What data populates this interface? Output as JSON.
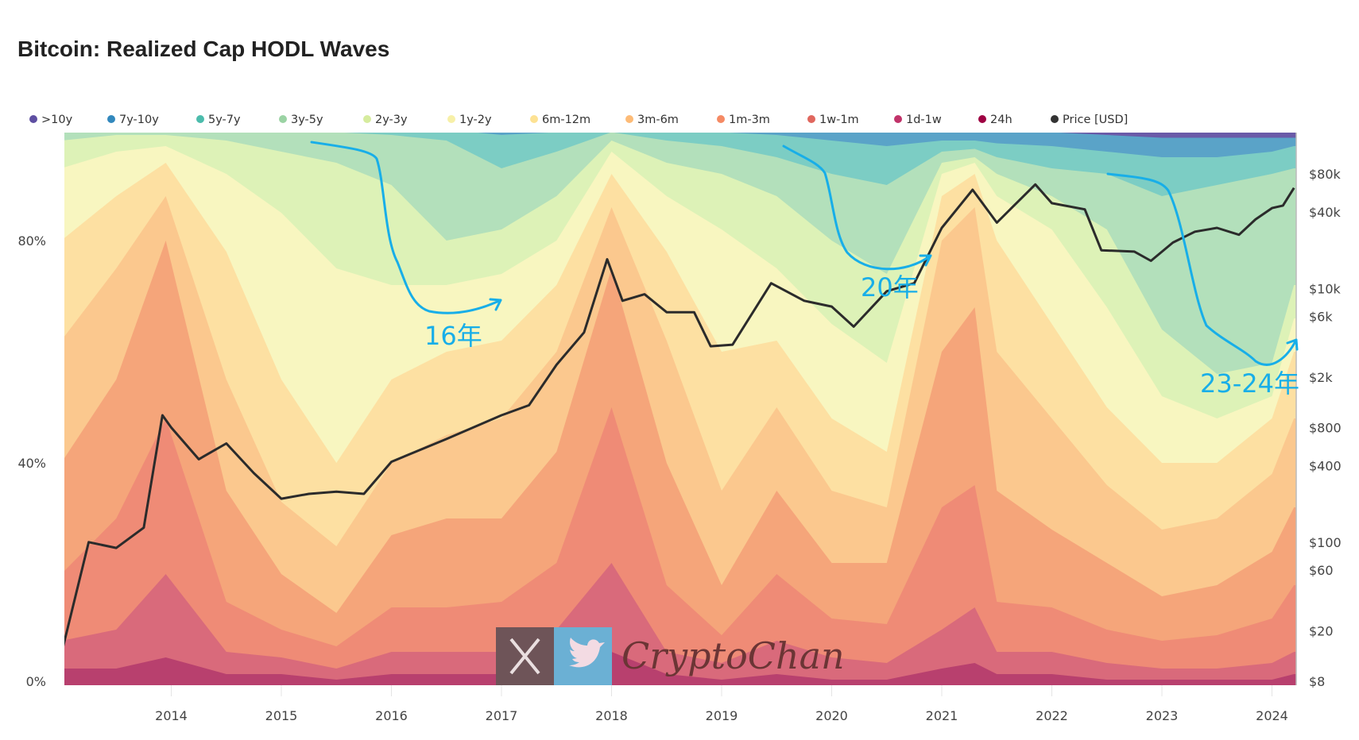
{
  "chart_data": {
    "type": "area",
    "title": "Bitcoin: Realized Cap HODL Waves",
    "stacked": true,
    "legend_position": "top-left",
    "grid": false,
    "x_unit": "year",
    "xlim": [
      2013.0,
      2024.22
    ],
    "x_ticks": [
      "2014",
      "2015",
      "2016",
      "2017",
      "2018",
      "2019",
      "2020",
      "2021",
      "2022",
      "2023",
      "2024"
    ],
    "y_left": {
      "ticks": [
        "0%",
        "40%",
        "80%"
      ],
      "range": [
        0,
        100
      ]
    },
    "y_right": {
      "scale": "log",
      "ticks": [
        "$80k",
        "$40k",
        "$10k",
        "$6k",
        "$2k",
        "$800",
        "$400",
        "$100",
        "$60",
        "$20",
        "$8"
      ],
      "tick_values": [
        80000,
        40000,
        10000,
        6000,
        2000,
        800,
        400,
        100,
        60,
        20,
        8
      ],
      "range": [
        8,
        80000
      ]
    },
    "x": [
      2013.0,
      2013.5,
      2013.95,
      2014.5,
      2015.0,
      2015.5,
      2016.0,
      2016.5,
      2017.0,
      2017.5,
      2018.0,
      2018.5,
      2019.0,
      2019.5,
      2020.0,
      2020.5,
      2021.0,
      2021.3,
      2021.5,
      2022.0,
      2022.5,
      2023.0,
      2023.5,
      2024.0,
      2024.2
    ],
    "series": [
      {
        "name": "24h",
        "legend_color": "#9e0142",
        "fill": "#b8406e",
        "values": [
          3,
          3,
          5,
          2,
          2,
          1,
          2,
          2,
          2,
          3,
          6,
          2,
          1,
          2,
          1,
          1,
          3,
          4,
          2,
          2,
          1,
          1,
          1,
          1,
          2
        ]
      },
      {
        "name": "1d-1w",
        "legend_color": "#c1336a",
        "fill": "#d96a7b",
        "values": [
          5,
          7,
          15,
          4,
          3,
          2,
          4,
          4,
          4,
          7,
          16,
          4,
          3,
          6,
          4,
          3,
          7,
          10,
          4,
          4,
          3,
          2,
          2,
          3,
          4
        ]
      },
      {
        "name": "1w-1m",
        "legend_color": "#e0675e",
        "fill": "#ef8b76",
        "values": [
          12,
          20,
          28,
          9,
          5,
          4,
          8,
          8,
          9,
          12,
          28,
          12,
          5,
          12,
          7,
          7,
          22,
          22,
          9,
          8,
          6,
          5,
          6,
          8,
          12
        ]
      },
      {
        "name": "1m-3m",
        "legend_color": "#f58a64",
        "fill": "#f5a57a",
        "values": [
          20,
          25,
          32,
          20,
          10,
          6,
          13,
          16,
          15,
          20,
          25,
          22,
          9,
          15,
          10,
          11,
          28,
          32,
          20,
          14,
          12,
          8,
          9,
          12,
          14
        ]
      },
      {
        "name": "3m-6m",
        "legend_color": "#fdbb77",
        "fill": "#fbc88e",
        "values": [
          22,
          20,
          8,
          20,
          13,
          12,
          13,
          15,
          18,
          18,
          11,
          22,
          17,
          15,
          13,
          10,
          20,
          18,
          25,
          20,
          14,
          12,
          12,
          14,
          16
        ]
      },
      {
        "name": "6m-12m",
        "legend_color": "#fde293",
        "fill": "#fde0a2",
        "values": [
          18,
          13,
          6,
          23,
          22,
          15,
          15,
          15,
          14,
          12,
          6,
          16,
          25,
          12,
          13,
          10,
          8,
          6,
          20,
          17,
          14,
          12,
          10,
          10,
          12
        ]
      },
      {
        "name": "1y-2y",
        "legend_color": "#f7f0a8",
        "fill": "#f8f6c0",
        "values": [
          13,
          8,
          3,
          14,
          30,
          35,
          17,
          12,
          12,
          8,
          4,
          10,
          22,
          13,
          17,
          16,
          4,
          2,
          8,
          17,
          18,
          12,
          8,
          4,
          6
        ]
      },
      {
        "name": "2y-3y",
        "legend_color": "#d6ec9e",
        "fill": "#ddf2b7",
        "values": [
          5,
          3,
          2,
          6,
          11,
          19,
          18,
          8,
          8,
          8,
          2,
          6,
          10,
          13,
          15,
          16,
          2,
          1,
          4,
          6,
          14,
          12,
          8,
          6,
          6
        ]
      },
      {
        "name": "3y-5y",
        "legend_color": "#9bd3a4",
        "fill": "#b3e0bb",
        "values": [
          2,
          1,
          1,
          2,
          4,
          5.5,
          9,
          18,
          11,
          8,
          1.5,
          4,
          5,
          7,
          12,
          16,
          2,
          1.5,
          3,
          5,
          10,
          24,
          34,
          34,
          21
        ]
      },
      {
        "name": "5y-7y",
        "legend_color": "#4cbcac",
        "fill": "#7ccdc4",
        "values": [
          0,
          0,
          0,
          0,
          0,
          0.5,
          1,
          2,
          6,
          3.5,
          0.5,
          1.5,
          2.5,
          4,
          6,
          7,
          2,
          1.5,
          2.5,
          4,
          4,
          7,
          5,
          4,
          4
        ]
      },
      {
        "name": "7y-10y",
        "legend_color": "#3288bd",
        "fill": "#5aa3c8",
        "values": [
          0,
          0,
          0,
          0,
          0,
          0,
          0,
          0,
          1,
          0.5,
          0,
          0.5,
          0.5,
          1,
          2,
          2.5,
          1.5,
          1.5,
          2,
          2.5,
          3,
          3.5,
          3.5,
          2.5,
          1.5
        ]
      },
      {
        "name": ">10y",
        "legend_color": "#5e4fa2",
        "fill": "#6a5aa8",
        "values": [
          0,
          0,
          0,
          0,
          0,
          0,
          0,
          0,
          0,
          0,
          0,
          0,
          0,
          0,
          0,
          0.5,
          0.5,
          0.5,
          0.5,
          0.5,
          1,
          1.5,
          1.5,
          1.5,
          1.5
        ]
      }
    ],
    "price": {
      "name": "Price [USD]",
      "legend_color": "#333333",
      "x": [
        2013.0,
        2013.25,
        2013.5,
        2013.75,
        2013.92,
        2014.0,
        2014.25,
        2014.5,
        2014.75,
        2015.0,
        2015.25,
        2015.5,
        2015.75,
        2016.0,
        2016.5,
        2017.0,
        2017.25,
        2017.5,
        2017.75,
        2017.96,
        2018.1,
        2018.3,
        2018.5,
        2018.75,
        2018.9,
        2019.1,
        2019.45,
        2019.75,
        2020.0,
        2020.2,
        2020.5,
        2020.75,
        2021.0,
        2021.28,
        2021.5,
        2021.85,
        2022.0,
        2022.3,
        2022.45,
        2022.75,
        2022.9,
        2023.1,
        2023.3,
        2023.5,
        2023.7,
        2023.85,
        2024.0,
        2024.1,
        2024.2
      ],
      "values": [
        13,
        100,
        90,
        130,
        1000,
        800,
        450,
        600,
        350,
        220,
        240,
        250,
        240,
        430,
        650,
        1000,
        1200,
        2500,
        4500,
        17000,
        8000,
        9000,
        6500,
        6500,
        3500,
        3600,
        11000,
        8000,
        7200,
        5000,
        9500,
        11000,
        30000,
        60000,
        33000,
        66000,
        47000,
        42000,
        20000,
        19500,
        16500,
        23000,
        28000,
        30000,
        26500,
        35000,
        43000,
        45000,
        62000
      ]
    },
    "annotations": [
      {
        "label": "16年",
        "color": "#18aee8"
      },
      {
        "label": "20年",
        "color": "#18aee8"
      },
      {
        "label": "23-24年",
        "color": "#18aee8"
      }
    ]
  },
  "watermark": {
    "text": "CryptoChan"
  }
}
